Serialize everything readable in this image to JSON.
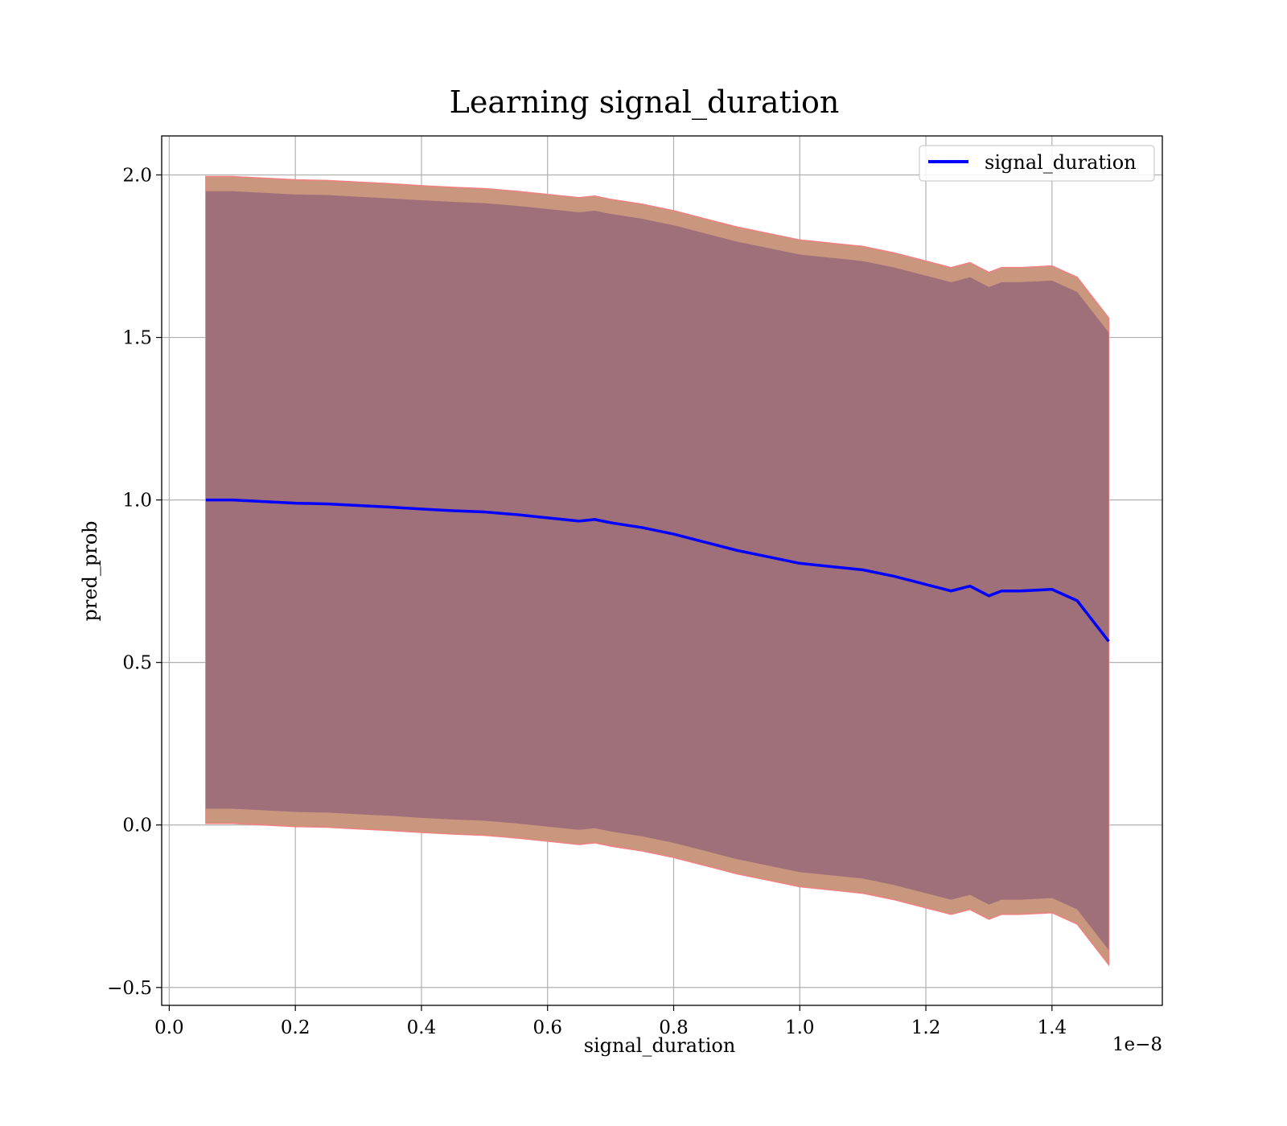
{
  "chart_data": {
    "type": "line",
    "title": "Learning signal_duration",
    "xlabel": "signal_duration",
    "ylabel": "pred_prob",
    "x_offset_label": "1e−8",
    "xlim": [
      -0.012,
      1.575
    ],
    "ylim": [
      -0.555,
      2.12
    ],
    "x_ticks": [
      0.0,
      0.2,
      0.4,
      0.6,
      0.8,
      1.0,
      1.2,
      1.4
    ],
    "x_tick_labels": [
      "0.0",
      "0.2",
      "0.4",
      "0.6",
      "0.8",
      "1.0",
      "1.2",
      "1.4"
    ],
    "y_ticks": [
      -0.5,
      0.0,
      0.5,
      1.0,
      1.5,
      2.0
    ],
    "y_tick_labels": [
      "−0.5",
      "0.0",
      "0.5",
      "1.0",
      "1.5",
      "2.0"
    ],
    "grid": true,
    "legend": {
      "position": "top-right",
      "entries": [
        "signal_duration"
      ]
    },
    "colors": {
      "line": "#0000ff",
      "inner_band": "#a0707a",
      "outer_band": "#c8977e",
      "band_edge": "#f08080",
      "grid": "#b0b0b0"
    },
    "series": [
      {
        "name": "signal_duration",
        "x": [
          0.058,
          0.1,
          0.15,
          0.2,
          0.25,
          0.3,
          0.35,
          0.4,
          0.45,
          0.5,
          0.55,
          0.6,
          0.65,
          0.675,
          0.7,
          0.75,
          0.8,
          0.85,
          0.9,
          0.95,
          1.0,
          1.05,
          1.1,
          1.15,
          1.2,
          1.22,
          1.24,
          1.27,
          1.3,
          1.32,
          1.35,
          1.4,
          1.44,
          1.49
        ],
        "y": [
          1.0,
          1.0,
          0.995,
          0.99,
          0.988,
          0.983,
          0.978,
          0.972,
          0.967,
          0.963,
          0.955,
          0.945,
          0.935,
          0.94,
          0.93,
          0.915,
          0.895,
          0.87,
          0.845,
          0.825,
          0.805,
          0.795,
          0.785,
          0.765,
          0.74,
          0.73,
          0.72,
          0.735,
          0.705,
          0.72,
          0.72,
          0.725,
          0.69,
          0.565
        ]
      }
    ],
    "bands": {
      "inner_half_width": 0.95,
      "outer_half_width": 0.995
    }
  }
}
